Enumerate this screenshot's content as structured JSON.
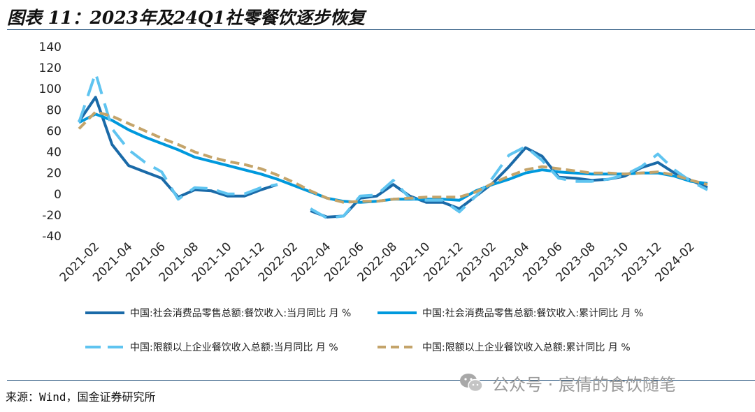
{
  "title": "图表 11：2023年及24Q1社零餐饮逐步恢复",
  "source": "来源：Wind，国金证券研究所",
  "watermark": "公众号 · 宸倩的食饮随笔",
  "chart_data": {
    "type": "line",
    "title": "",
    "xlabel": "",
    "ylabel": "",
    "ylim": [
      -40,
      140
    ],
    "yticks": [
      "140",
      "120",
      "100",
      "80",
      "60",
      "40",
      "20",
      "0",
      "-20",
      "-40"
    ],
    "x": [
      "2021-01",
      "2021-02",
      "2021-03",
      "2021-04",
      "2021-05",
      "2021-06",
      "2021-07",
      "2021-08",
      "2021-09",
      "2021-10",
      "2021-11",
      "2021-12",
      "2022-01",
      "2022-02",
      "2022-03",
      "2022-04",
      "2022-05",
      "2022-06",
      "2022-07",
      "2022-08",
      "2022-09",
      "2022-10",
      "2022-11",
      "2022-12",
      "2023-01",
      "2023-02",
      "2023-03",
      "2023-04",
      "2023-05",
      "2023-06",
      "2023-07",
      "2023-08",
      "2023-09",
      "2023-10",
      "2023-11",
      "2023-12",
      "2024-01",
      "2024-02",
      "2024-03"
    ],
    "xtick_labels": [
      "2021-02",
      "2021-04",
      "2021-06",
      "2021-08",
      "2021-10",
      "2021-12",
      "2022-02",
      "2022-04",
      "2022-06",
      "2022-08",
      "2022-10",
      "2022-12",
      "2023-02",
      "2023-04",
      "2023-06",
      "2023-08",
      "2023-10",
      "2023-12",
      "2024-02"
    ],
    "series": [
      {
        "name": "中国:社会消费品零售总额:餐饮收入:当月同比 月 %",
        "color": "#1a6aa8",
        "dash": "solid",
        "values": [
          69,
          92,
          47,
          27,
          21,
          15,
          -3,
          4,
          3,
          -2,
          -2,
          4,
          9,
          null,
          -16,
          -22,
          -21,
          -4,
          -2,
          9,
          -2,
          -8,
          -8,
          -14,
          -2,
          10,
          26,
          44,
          36,
          16,
          15,
          13,
          14,
          17,
          25,
          30,
          20,
          13,
          6
        ]
      },
      {
        "name": "中国:社会消费品零售总额:餐饮收入:累计同比 月 %",
        "color": "#0099dd",
        "dash": "solid",
        "values": [
          68,
          76,
          70,
          61,
          54,
          48,
          42,
          35,
          31,
          27,
          23,
          19,
          14,
          8,
          2,
          -4,
          -7,
          -8,
          -7,
          -5,
          -5,
          -5,
          -5,
          -6,
          3,
          9,
          14,
          20,
          23,
          21,
          20,
          19,
          19,
          19,
          20,
          20,
          17,
          12,
          10
        ]
      },
      {
        "name": "中国:限额以上企业餐饮收入总额:当月同比 月 %",
        "color": "#5fc4f0",
        "dash": "long",
        "values": [
          68,
          115,
          62,
          42,
          30,
          21,
          -5,
          6,
          5,
          0,
          0,
          6,
          9,
          null,
          -14,
          -23,
          -21,
          -2,
          -1,
          13,
          -4,
          -6,
          -6,
          -17,
          -2,
          15,
          37,
          45,
          32,
          15,
          12,
          12,
          14,
          18,
          26,
          38,
          23,
          12,
          4
        ]
      },
      {
        "name": "中国:限额以上企业餐饮收入总额:累计同比 月 %",
        "color": "#c4a46a",
        "dash": "dashed",
        "values": [
          62,
          78,
          74,
          67,
          60,
          53,
          47,
          40,
          35,
          31,
          28,
          24,
          18,
          11,
          3,
          -4,
          -8,
          -7,
          -7,
          -5,
          -4,
          -3,
          -3,
          -3,
          2,
          10,
          17,
          23,
          26,
          24,
          22,
          20,
          20,
          19,
          20,
          21,
          18,
          13,
          9
        ]
      }
    ],
    "legend_position": "bottom",
    "grid": false
  }
}
